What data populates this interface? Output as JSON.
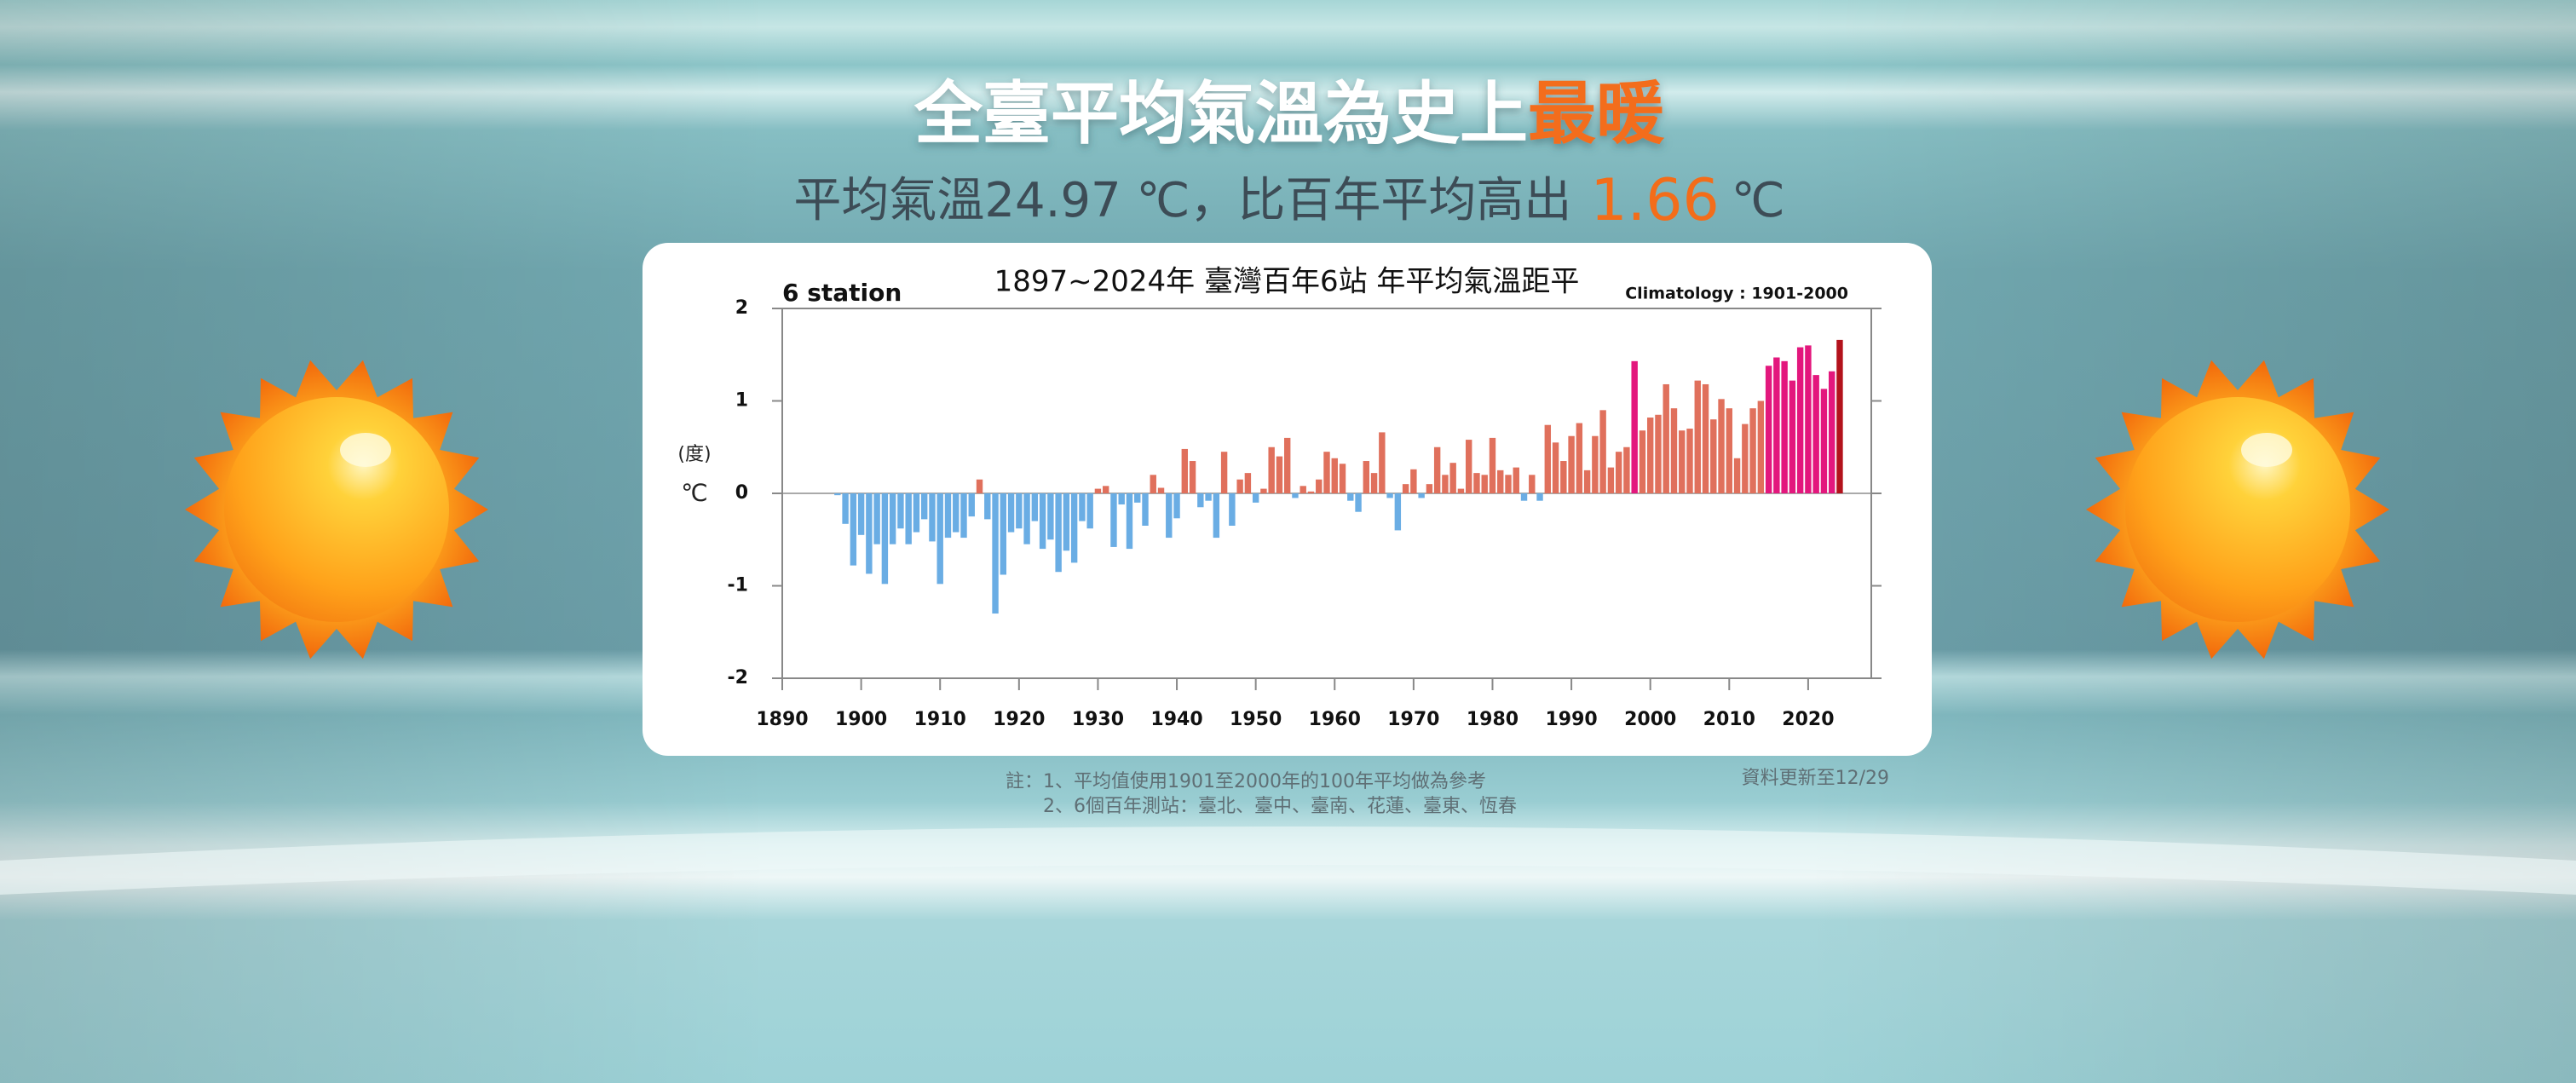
{
  "header": {
    "title_main": "全臺平均氣溫為史上",
    "title_highlight": "最暖",
    "subtitle_prefix": "平均氣溫24.97 ℃，比百年平均高出",
    "subtitle_value": "1.66",
    "subtitle_unit": "℃"
  },
  "chart_data": {
    "type": "bar",
    "title": "1897~2024年  臺灣百年6站 年平均氣溫距平",
    "subtitle_left": "6 station",
    "subtitle_right": "Climatology : 1901-2000",
    "y_unit_note": "(度)",
    "y_label": "℃",
    "x": [
      1897,
      1898,
      1899,
      1900,
      1901,
      1902,
      1903,
      1904,
      1905,
      1906,
      1907,
      1908,
      1909,
      1910,
      1911,
      1912,
      1913,
      1914,
      1915,
      1916,
      1917,
      1918,
      1919,
      1920,
      1921,
      1922,
      1923,
      1924,
      1925,
      1926,
      1927,
      1928,
      1929,
      1930,
      1931,
      1932,
      1933,
      1934,
      1935,
      1936,
      1937,
      1938,
      1939,
      1940,
      1941,
      1942,
      1943,
      1944,
      1945,
      1946,
      1947,
      1948,
      1949,
      1950,
      1951,
      1952,
      1953,
      1954,
      1955,
      1956,
      1957,
      1958,
      1959,
      1960,
      1961,
      1962,
      1963,
      1964,
      1965,
      1966,
      1967,
      1968,
      1969,
      1970,
      1971,
      1972,
      1973,
      1974,
      1975,
      1976,
      1977,
      1978,
      1979,
      1980,
      1981,
      1982,
      1983,
      1984,
      1985,
      1986,
      1987,
      1988,
      1989,
      1990,
      1991,
      1992,
      1993,
      1994,
      1995,
      1996,
      1997,
      1998,
      1999,
      2000,
      2001,
      2002,
      2003,
      2004,
      2005,
      2006,
      2007,
      2008,
      2009,
      2010,
      2011,
      2012,
      2013,
      2014,
      2015,
      2016,
      2017,
      2018,
      2019,
      2020,
      2021,
      2022,
      2023,
      2024
    ],
    "values": [
      -0.02,
      -0.33,
      -0.78,
      -0.45,
      -0.87,
      -0.55,
      -0.98,
      -0.55,
      -0.38,
      -0.55,
      -0.42,
      -0.28,
      -0.52,
      -0.98,
      -0.48,
      -0.42,
      -0.48,
      -0.25,
      0.15,
      -0.28,
      -1.3,
      -0.88,
      -0.42,
      -0.38,
      -0.55,
      -0.3,
      -0.6,
      -0.5,
      -0.85,
      -0.62,
      -0.75,
      -0.3,
      -0.38,
      0.05,
      0.08,
      -0.58,
      -0.12,
      -0.6,
      -0.1,
      -0.35,
      0.2,
      0.06,
      -0.48,
      -0.27,
      0.48,
      0.35,
      -0.15,
      -0.08,
      -0.48,
      0.45,
      -0.35,
      0.15,
      0.22,
      -0.1,
      0.05,
      0.5,
      0.4,
      0.6,
      -0.05,
      0.08,
      0.02,
      0.15,
      0.45,
      0.38,
      0.32,
      -0.08,
      -0.2,
      0.35,
      0.22,
      0.66,
      -0.05,
      -0.4,
      0.1,
      0.26,
      -0.05,
      0.1,
      0.5,
      0.2,
      0.33,
      0.05,
      0.58,
      0.22,
      0.2,
      0.6,
      0.25,
      0.2,
      0.28,
      -0.08,
      0.2,
      -0.08,
      0.74,
      0.55,
      0.35,
      0.62,
      0.76,
      0.25,
      0.62,
      0.9,
      0.28,
      0.45,
      0.5,
      1.43,
      0.68,
      0.82,
      0.85,
      1.18,
      0.92,
      0.68,
      0.7,
      1.22,
      1.18,
      0.8,
      1.02,
      0.92,
      0.38,
      0.75,
      0.92,
      1.0,
      1.38,
      1.47,
      1.43,
      1.22,
      1.58,
      1.6,
      1.28,
      1.13,
      1.32,
      1.66
    ],
    "colors": [
      "#6aade4",
      "#6aade4",
      "#6aade4",
      "#6aade4",
      "#6aade4",
      "#6aade4",
      "#6aade4",
      "#6aade4",
      "#6aade4",
      "#6aade4",
      "#6aade4",
      "#6aade4",
      "#6aade4",
      "#6aade4",
      "#6aade4",
      "#6aade4",
      "#6aade4",
      "#6aade4",
      "#e0705c",
      "#6aade4",
      "#6aade4",
      "#6aade4",
      "#6aade4",
      "#6aade4",
      "#6aade4",
      "#6aade4",
      "#6aade4",
      "#6aade4",
      "#6aade4",
      "#6aade4",
      "#6aade4",
      "#6aade4",
      "#6aade4",
      "#e0705c",
      "#e0705c",
      "#6aade4",
      "#6aade4",
      "#6aade4",
      "#6aade4",
      "#6aade4",
      "#e0705c",
      "#e0705c",
      "#6aade4",
      "#6aade4",
      "#e0705c",
      "#e0705c",
      "#6aade4",
      "#6aade4",
      "#6aade4",
      "#e0705c",
      "#6aade4",
      "#e0705c",
      "#e0705c",
      "#6aade4",
      "#e0705c",
      "#e0705c",
      "#e0705c",
      "#e0705c",
      "#6aade4",
      "#e0705c",
      "#e0705c",
      "#e0705c",
      "#e0705c",
      "#e0705c",
      "#e0705c",
      "#6aade4",
      "#6aade4",
      "#e0705c",
      "#e0705c",
      "#e0705c",
      "#6aade4",
      "#6aade4",
      "#e0705c",
      "#e0705c",
      "#6aade4",
      "#e0705c",
      "#e0705c",
      "#e0705c",
      "#e0705c",
      "#e0705c",
      "#e0705c",
      "#e0705c",
      "#e0705c",
      "#e0705c",
      "#e0705c",
      "#e0705c",
      "#e0705c",
      "#6aade4",
      "#e0705c",
      "#6aade4",
      "#e0705c",
      "#e0705c",
      "#e0705c",
      "#e0705c",
      "#e0705c",
      "#e0705c",
      "#e0705c",
      "#e0705c",
      "#e0705c",
      "#e0705c",
      "#e0705c",
      "#e3177d",
      "#e0705c",
      "#e0705c",
      "#e0705c",
      "#e0705c",
      "#e0705c",
      "#e0705c",
      "#e0705c",
      "#e0705c",
      "#e0705c",
      "#e0705c",
      "#e0705c",
      "#e0705c",
      "#e0705c",
      "#e0705c",
      "#e0705c",
      "#e0705c",
      "#e3177d",
      "#e3177d",
      "#e3177d",
      "#e3177d",
      "#e3177d",
      "#e3177d",
      "#e3177d",
      "#e3177d",
      "#e3177d",
      "#b3121c"
    ],
    "xlim": [
      1890,
      2028
    ],
    "xticks": [
      1890,
      1900,
      1910,
      1920,
      1930,
      1940,
      1950,
      1960,
      1970,
      1980,
      1990,
      2000,
      2010,
      2020
    ],
    "ylim": [
      -2,
      2
    ],
    "yticks": [
      -2,
      -1,
      0,
      1,
      2
    ],
    "grid": false
  },
  "notes": {
    "line1": "註：1、平均值使用1901至2000年的100年平均做為參考",
    "line2": "2、6個百年測站：臺北、臺中、臺南、花蓮、臺東、恆春",
    "updated": "資料更新至12/29"
  }
}
